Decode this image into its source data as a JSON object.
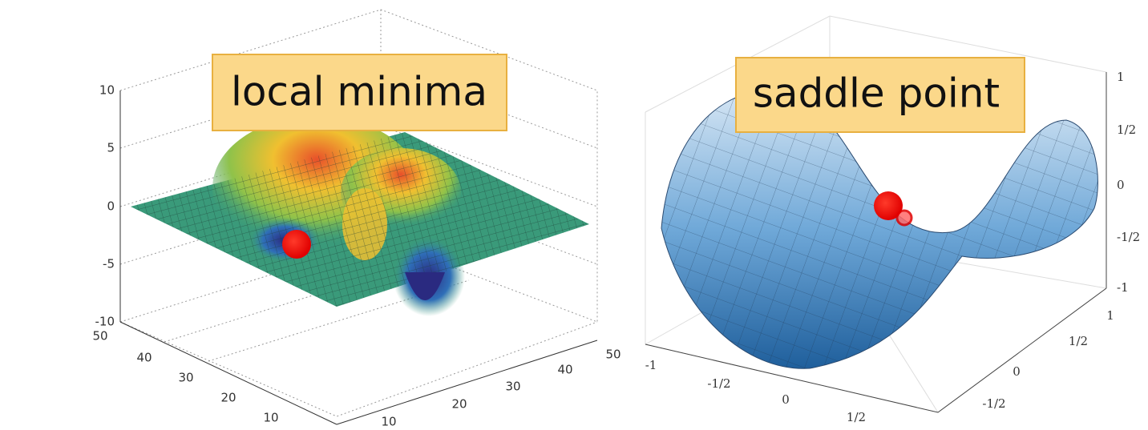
{
  "panels": [
    {
      "label": "local minima",
      "z_ticks": [
        "10",
        "5",
        "0",
        "-5",
        "-10"
      ],
      "x_ticks": [
        "50",
        "40",
        "30",
        "20",
        "10"
      ],
      "y_ticks": [
        "10",
        "20",
        "30",
        "40",
        "50"
      ]
    },
    {
      "label": "saddle point",
      "z_ticks": [
        "1",
        "1/2",
        "0",
        "-1/2",
        "-1"
      ],
      "x_ticks": [
        "-1",
        "-1/2",
        "0",
        "1/2"
      ],
      "y_ticks": [
        "-1/2",
        "0",
        "1/2",
        "1"
      ]
    }
  ]
}
